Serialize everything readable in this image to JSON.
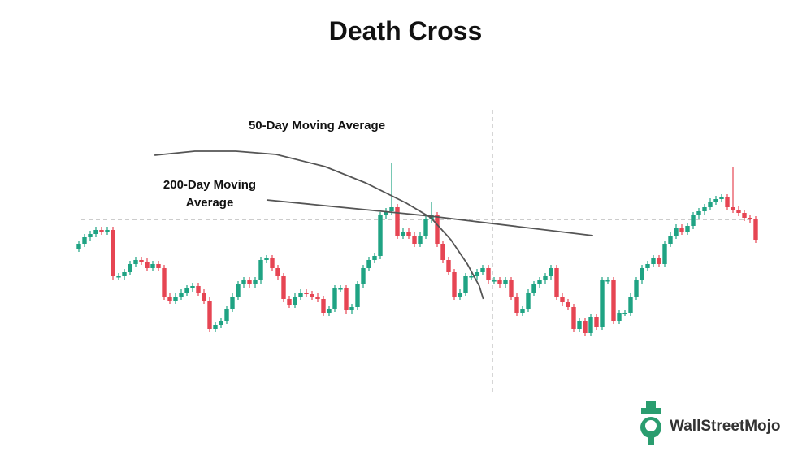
{
  "chart_data": {
    "type": "candlestick",
    "title": "Death Cross",
    "ylim": [
      0,
      500
    ],
    "up_color": "#1fa383",
    "down_color": "#e64553",
    "open": [
      194,
      200,
      208,
      212,
      217,
      215,
      217,
      160,
      160,
      165,
      175,
      180,
      178,
      170,
      175,
      170,
      135,
      130,
      135,
      140,
      145,
      148,
      140,
      130,
      95,
      100,
      105,
      120,
      135,
      150,
      155,
      150,
      155,
      180,
      182,
      170,
      160,
      132,
      125,
      135,
      140,
      138,
      135,
      132,
      115,
      120,
      145,
      145,
      118,
      122,
      150,
      170,
      180,
      185,
      235,
      240,
      245,
      210,
      215,
      210,
      200,
      210,
      230,
      235,
      200,
      180,
      165,
      135,
      140,
      160,
      160,
      165,
      170,
      155,
      155,
      150,
      155,
      135,
      115,
      120,
      140,
      150,
      155,
      160,
      170,
      135,
      128,
      122,
      95,
      105,
      90,
      110,
      98,
      155,
      155,
      105,
      115,
      115,
      135,
      155,
      170,
      175,
      182,
      175,
      200,
      210,
      220,
      215,
      222,
      235,
      240,
      245,
      252,
      255,
      257,
      245,
      242,
      238,
      232,
      230
    ],
    "high": [
      204,
      212,
      216,
      221,
      221,
      221,
      221,
      164,
      169,
      179,
      184,
      184,
      182,
      179,
      179,
      174,
      139,
      139,
      144,
      149,
      152,
      152,
      144,
      134,
      104,
      109,
      124,
      139,
      154,
      159,
      159,
      159,
      184,
      186,
      186,
      174,
      164,
      136,
      139,
      144,
      144,
      142,
      139,
      136,
      124,
      149,
      149,
      149,
      126,
      154,
      174,
      184,
      189,
      239,
      244,
      300,
      249,
      219,
      219,
      214,
      214,
      234,
      252,
      239,
      204,
      184,
      169,
      144,
      164,
      164,
      169,
      174,
      174,
      159,
      159,
      159,
      159,
      139,
      124,
      144,
      154,
      159,
      164,
      174,
      174,
      139,
      132,
      126,
      109,
      109,
      114,
      114,
      159,
      159,
      159,
      119,
      119,
      139,
      159,
      174,
      179,
      186,
      186,
      204,
      214,
      224,
      224,
      226,
      239,
      244,
      249,
      256,
      259,
      261,
      261,
      295,
      246,
      242,
      236,
      234
    ],
    "low": [
      190,
      196,
      204,
      208,
      211,
      211,
      156,
      156,
      156,
      161,
      171,
      174,
      166,
      166,
      166,
      131,
      126,
      126,
      131,
      136,
      141,
      136,
      126,
      91,
      91,
      96,
      101,
      116,
      131,
      146,
      146,
      146,
      151,
      176,
      166,
      156,
      128,
      121,
      121,
      131,
      134,
      131,
      128,
      111,
      111,
      116,
      141,
      114,
      114,
      118,
      146,
      166,
      176,
      181,
      231,
      236,
      206,
      206,
      206,
      196,
      196,
      206,
      226,
      196,
      176,
      161,
      131,
      131,
      136,
      156,
      156,
      161,
      151,
      151,
      146,
      146,
      131,
      111,
      111,
      116,
      136,
      146,
      151,
      156,
      131,
      124,
      118,
      91,
      91,
      86,
      86,
      94,
      94,
      151,
      101,
      101,
      111,
      111,
      131,
      151,
      166,
      171,
      171,
      171,
      196,
      206,
      211,
      211,
      218,
      231,
      236,
      241,
      248,
      251,
      241,
      238,
      234,
      228,
      226,
      201
    ],
    "close": [
      200,
      208,
      212,
      217,
      215,
      217,
      160,
      160,
      165,
      175,
      180,
      178,
      170,
      175,
      170,
      135,
      130,
      135,
      140,
      145,
      148,
      140,
      130,
      95,
      100,
      105,
      120,
      135,
      150,
      155,
      150,
      155,
      180,
      182,
      170,
      160,
      132,
      125,
      135,
      140,
      138,
      135,
      132,
      115,
      120,
      145,
      145,
      118,
      122,
      150,
      170,
      180,
      185,
      235,
      240,
      245,
      210,
      215,
      210,
      200,
      210,
      230,
      235,
      200,
      180,
      165,
      135,
      140,
      160,
      160,
      165,
      170,
      155,
      155,
      150,
      155,
      135,
      115,
      120,
      140,
      150,
      155,
      160,
      170,
      135,
      128,
      122,
      95,
      105,
      90,
      110,
      98,
      155,
      155,
      105,
      115,
      115,
      135,
      155,
      170,
      175,
      182,
      175,
      200,
      210,
      220,
      215,
      222,
      235,
      240,
      245,
      252,
      255,
      257,
      245,
      242,
      238,
      232,
      230,
      205
    ],
    "moving_averages": [
      {
        "name": "50-Day Moving Average",
        "color": "#555555",
        "x": [
          13.3,
          20.4,
          27.6,
          34.7,
          43.3,
          50.4,
          57.6,
          61.9,
          65.4,
          68.3,
          70.4,
          71.1
        ],
        "values": [
          309,
          314,
          314,
          310,
          295,
          275,
          250,
          232,
          205,
          175,
          148,
          132
        ]
      },
      {
        "name": "200-Day Moving Average",
        "color": "#555555",
        "x": [
          33,
          61.9,
          90.4
        ],
        "values": [
          254,
          234,
          210
        ]
      }
    ],
    "reference_y": 230,
    "reference_x": 72.7,
    "watermark": "WallStreetMojo"
  }
}
